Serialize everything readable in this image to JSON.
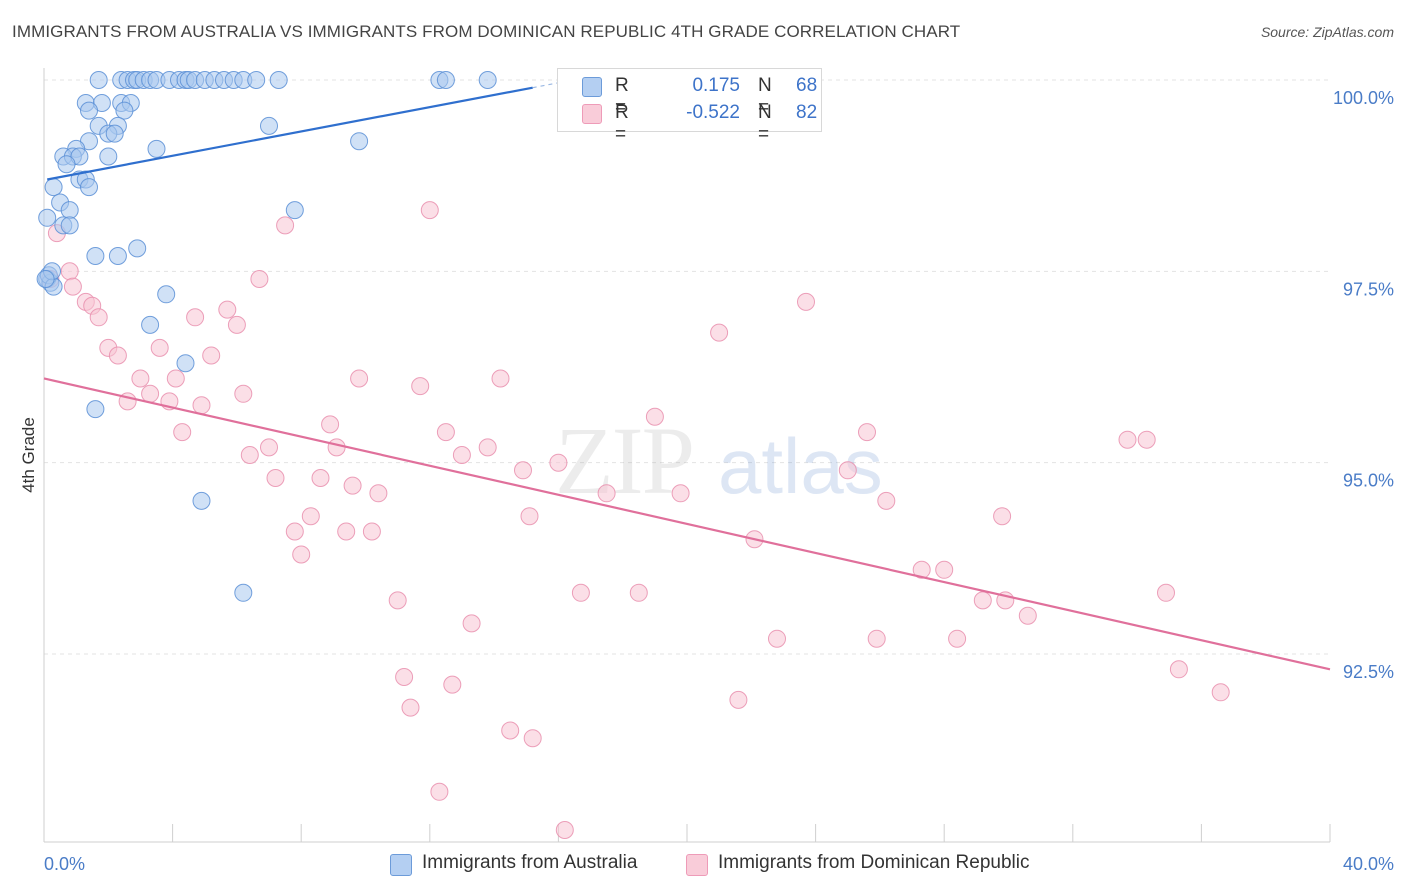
{
  "header": {
    "title": "IMMIGRANTS FROM AUSTRALIA VS IMMIGRANTS FROM DOMINICAN REPUBLIC 4TH GRADE CORRELATION CHART",
    "source": "Source: ZipAtlas.com"
  },
  "watermark": "ZIPatlas",
  "legend": {
    "rows": [
      {
        "r_label": "R =",
        "r_value": "0.175",
        "n_label": "N =",
        "n_value": "68"
      },
      {
        "r_label": "R =",
        "r_value": "-0.522",
        "n_label": "N =",
        "n_value": "82"
      }
    ]
  },
  "bottom_legend": {
    "items": [
      {
        "label": "Immigrants from Australia"
      },
      {
        "label": "Immigrants from Dominican Republic"
      }
    ]
  },
  "colors": {
    "australia_fill": "#a9c8ee",
    "australia_stroke": "#5b8fd6",
    "australia_line": "#2f6fce",
    "dominican_fill": "#f7c4d3",
    "dominican_stroke": "#e98fae",
    "dominican_line": "#e0709b",
    "tick_text": "#4a7cc7",
    "grid": "#e3e3e3"
  },
  "chart_data": {
    "type": "scatter",
    "ylabel": "4th Grade",
    "xlim": [
      0,
      40
    ],
    "ylim": [
      90,
      100.25
    ],
    "x_tick_labels": [
      "0.0%",
      "40.0%"
    ],
    "y_ticks": [
      100.0,
      97.5,
      95.0,
      92.5
    ],
    "y_tick_labels": [
      "100.0%",
      "97.5%",
      "95.0%",
      "92.5%"
    ],
    "grid": true,
    "legend_position": "top-center",
    "series": [
      {
        "name": "Immigrants from Australia",
        "trend": {
          "x": [
            0.1,
            15.2
          ],
          "y": [
            98.7,
            99.9
          ]
        },
        "points": [
          [
            1.7,
            100.0
          ],
          [
            2.4,
            100.0
          ],
          [
            2.6,
            100.0
          ],
          [
            2.8,
            100.0
          ],
          [
            2.9,
            100.0
          ],
          [
            3.1,
            100.0
          ],
          [
            3.3,
            100.0
          ],
          [
            3.5,
            100.0
          ],
          [
            3.9,
            100.0
          ],
          [
            4.2,
            100.0
          ],
          [
            4.4,
            100.0
          ],
          [
            4.5,
            100.0
          ],
          [
            4.7,
            100.0
          ],
          [
            5.0,
            100.0
          ],
          [
            5.3,
            100.0
          ],
          [
            5.6,
            100.0
          ],
          [
            5.9,
            100.0
          ],
          [
            6.2,
            100.0
          ],
          [
            6.6,
            100.0
          ],
          [
            7.3,
            100.0
          ],
          [
            12.3,
            100.0
          ],
          [
            12.5,
            100.0
          ],
          [
            13.8,
            100.0
          ],
          [
            1.3,
            99.7
          ],
          [
            1.8,
            99.7
          ],
          [
            2.4,
            99.7
          ],
          [
            2.7,
            99.7
          ],
          [
            1.4,
            99.6
          ],
          [
            2.5,
            99.6
          ],
          [
            1.7,
            99.4
          ],
          [
            2.3,
            99.4
          ],
          [
            7.0,
            99.4
          ],
          [
            2.0,
            99.3
          ],
          [
            2.2,
            99.3
          ],
          [
            1.4,
            99.2
          ],
          [
            1.0,
            99.1
          ],
          [
            3.5,
            99.1
          ],
          [
            9.8,
            99.2
          ],
          [
            0.6,
            99.0
          ],
          [
            0.9,
            99.0
          ],
          [
            1.1,
            99.0
          ],
          [
            2.0,
            99.0
          ],
          [
            0.7,
            98.9
          ],
          [
            1.1,
            98.7
          ],
          [
            1.3,
            98.7
          ],
          [
            1.4,
            98.6
          ],
          [
            0.3,
            98.6
          ],
          [
            0.5,
            98.4
          ],
          [
            0.8,
            98.3
          ],
          [
            0.1,
            98.2
          ],
          [
            0.6,
            98.1
          ],
          [
            0.8,
            98.1
          ],
          [
            7.8,
            98.3
          ],
          [
            1.6,
            97.7
          ],
          [
            2.3,
            97.7
          ],
          [
            2.9,
            97.8
          ],
          [
            3.8,
            97.2
          ],
          [
            3.3,
            96.8
          ],
          [
            4.4,
            96.3
          ],
          [
            1.6,
            95.7
          ],
          [
            4.9,
            94.5
          ],
          [
            6.2,
            93.3
          ],
          [
            0.1,
            97.4
          ],
          [
            0.2,
            97.35
          ],
          [
            0.15,
            97.45
          ],
          [
            0.3,
            97.3
          ],
          [
            0.25,
            97.5
          ],
          [
            0.05,
            97.4
          ]
        ]
      },
      {
        "name": "Immigrants from Dominican Republic",
        "trend": {
          "x": [
            0.0,
            40.0
          ],
          "y": [
            96.1,
            92.3
          ]
        },
        "points": [
          [
            0.4,
            98.0
          ],
          [
            0.8,
            97.5
          ],
          [
            0.9,
            97.3
          ],
          [
            1.3,
            97.1
          ],
          [
            1.5,
            97.05
          ],
          [
            1.7,
            96.9
          ],
          [
            2.0,
            96.5
          ],
          [
            2.3,
            96.4
          ],
          [
            2.6,
            95.8
          ],
          [
            3.0,
            96.1
          ],
          [
            3.3,
            95.9
          ],
          [
            3.6,
            96.5
          ],
          [
            3.9,
            95.8
          ],
          [
            4.1,
            96.1
          ],
          [
            4.3,
            95.4
          ],
          [
            4.7,
            96.9
          ],
          [
            4.9,
            95.75
          ],
          [
            5.2,
            96.4
          ],
          [
            5.7,
            97.0
          ],
          [
            6.0,
            96.8
          ],
          [
            6.2,
            95.9
          ],
          [
            6.4,
            95.1
          ],
          [
            6.7,
            97.4
          ],
          [
            7.0,
            95.2
          ],
          [
            7.2,
            94.8
          ],
          [
            7.5,
            98.1
          ],
          [
            7.8,
            94.1
          ],
          [
            8.0,
            93.8
          ],
          [
            8.3,
            94.3
          ],
          [
            8.6,
            94.8
          ],
          [
            8.9,
            95.5
          ],
          [
            9.1,
            95.2
          ],
          [
            9.4,
            94.1
          ],
          [
            9.6,
            94.7
          ],
          [
            9.8,
            96.1
          ],
          [
            10.2,
            94.1
          ],
          [
            10.4,
            94.6
          ],
          [
            11.0,
            93.2
          ],
          [
            11.2,
            92.2
          ],
          [
            11.4,
            91.8
          ],
          [
            11.7,
            96.0
          ],
          [
            12.0,
            98.3
          ],
          [
            12.3,
            90.7
          ],
          [
            12.5,
            95.4
          ],
          [
            12.7,
            92.1
          ],
          [
            13.0,
            95.1
          ],
          [
            13.3,
            92.9
          ],
          [
            13.8,
            95.2
          ],
          [
            14.2,
            96.1
          ],
          [
            14.5,
            91.5
          ],
          [
            14.9,
            94.9
          ],
          [
            15.1,
            94.3
          ],
          [
            15.2,
            91.4
          ],
          [
            16.0,
            95.0
          ],
          [
            16.2,
            90.2
          ],
          [
            16.7,
            93.3
          ],
          [
            17.5,
            94.6
          ],
          [
            18.5,
            93.3
          ],
          [
            19.0,
            95.6
          ],
          [
            19.8,
            94.6
          ],
          [
            21.0,
            96.7
          ],
          [
            21.6,
            91.9
          ],
          [
            22.1,
            94.0
          ],
          [
            22.8,
            92.7
          ],
          [
            23.7,
            97.1
          ],
          [
            25.0,
            94.9
          ],
          [
            25.6,
            95.4
          ],
          [
            25.9,
            92.7
          ],
          [
            26.2,
            94.5
          ],
          [
            27.3,
            93.6
          ],
          [
            28.0,
            93.6
          ],
          [
            28.4,
            92.7
          ],
          [
            29.2,
            93.2
          ],
          [
            29.8,
            94.3
          ],
          [
            29.9,
            93.2
          ],
          [
            30.6,
            93.0
          ],
          [
            33.7,
            95.3
          ],
          [
            34.3,
            95.3
          ],
          [
            34.9,
            93.3
          ],
          [
            35.3,
            92.3
          ],
          [
            36.6,
            92.0
          ],
          [
            0.2,
            97.4
          ]
        ]
      }
    ]
  }
}
